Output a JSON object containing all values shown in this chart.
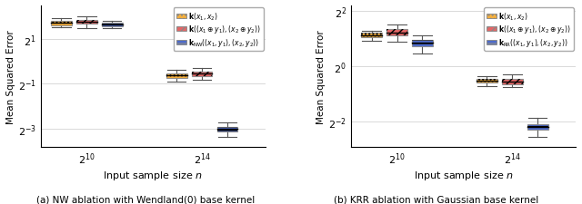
{
  "left_plot": {
    "ylabel": "Mean Squared Error",
    "xlabel": "Input sample size $n$",
    "yticks": [
      -3,
      -1,
      1
    ],
    "ylim": [
      -3.8,
      2.5
    ],
    "xtick_positions": [
      1.0,
      2.0
    ],
    "xtick_labels": [
      "$2^{10}$",
      "$2^{14}$"
    ],
    "legend_labels": [
      "$\\mathbf{k}(x_1,x_2)$",
      "$\\mathbf{k}((x_1 \\oplus y_1),(x_2 \\oplus y_2))$",
      "$\\mathbf{k}_{\\mathrm{NW}}((x_1,y_1),(x_2,y_2))$"
    ],
    "boxes": {
      "group1": {
        "orange": {
          "median": 1.72,
          "q1": 1.6,
          "q3": 1.8,
          "whislo": 1.52,
          "whishi": 1.92
        },
        "red": {
          "median": 1.78,
          "q1": 1.68,
          "q3": 1.86,
          "whislo": 1.48,
          "whishi": 2.0
        },
        "blue": {
          "median": 1.64,
          "q1": 1.55,
          "q3": 1.72,
          "whislo": 1.48,
          "whishi": 1.8
        }
      },
      "group2": {
        "orange": {
          "median": -0.62,
          "q1": -0.72,
          "q3": -0.52,
          "whislo": -0.88,
          "whishi": -0.38
        },
        "red": {
          "median": -0.55,
          "q1": -0.65,
          "q3": -0.44,
          "whislo": -0.82,
          "whishi": -0.28
        },
        "blue": {
          "median": -3.02,
          "q1": -3.12,
          "q3": -2.92,
          "whislo": -3.35,
          "whishi": -2.72
        }
      }
    }
  },
  "right_plot": {
    "ylabel": "Mean Squared Error",
    "xlabel": "Input sample size $n$",
    "yticks": [
      -2,
      0,
      2
    ],
    "ylim": [
      -2.9,
      2.2
    ],
    "xtick_positions": [
      1.0,
      2.0
    ],
    "xtick_labels": [
      "$2^{10}$",
      "$2^{14}$"
    ],
    "legend_labels": [
      "$\\mathbf{k}(x_1,x_2)$",
      "$\\mathbf{k}((x_1 \\oplus y_1),(x_2 \\oplus y_2))$",
      "$\\mathbf{k}_{\\mathrm{RR}}((x_1,y_1),(x_2,y_2))$"
    ],
    "boxes": {
      "group1": {
        "orange": {
          "median": 1.12,
          "q1": 1.04,
          "q3": 1.2,
          "whislo": 0.92,
          "whishi": 1.28
        },
        "red": {
          "median": 1.22,
          "q1": 1.12,
          "q3": 1.34,
          "whislo": 0.9,
          "whishi": 1.5
        },
        "blue": {
          "median": 0.86,
          "q1": 0.72,
          "q3": 0.96,
          "whislo": 0.46,
          "whishi": 1.12
        }
      },
      "group2": {
        "orange": {
          "median": -0.52,
          "q1": -0.6,
          "q3": -0.44,
          "whislo": -0.72,
          "whishi": -0.34
        },
        "red": {
          "median": -0.55,
          "q1": -0.64,
          "q3": -0.46,
          "whislo": -0.76,
          "whishi": -0.28
        },
        "blue": {
          "median": -2.18,
          "q1": -2.3,
          "q3": -2.08,
          "whislo": -2.55,
          "whishi": -1.85
        }
      }
    }
  },
  "colors": {
    "orange": "#F5A828",
    "red": "#E05555",
    "blue": "#3A5BC7"
  },
  "hatch_orange": "....",
  "hatch_red": "////",
  "hatch_blue": "----",
  "box_width": 0.18,
  "group_offsets": [
    -0.22,
    0.0,
    0.22
  ]
}
